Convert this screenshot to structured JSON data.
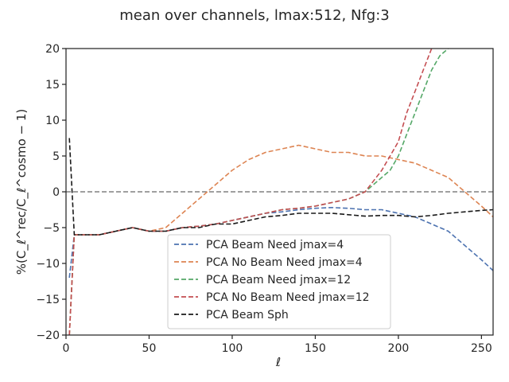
{
  "chart_data": {
    "type": "line",
    "title": "mean over channels, lmax:512, Nfg:3",
    "xlabel": "ℓ",
    "ylabel": "%(C_ℓ^rec/C_ℓ^cosmo − 1)",
    "xlim": [
      0,
      257
    ],
    "ylim": [
      -20,
      20
    ],
    "xticks": [
      0,
      50,
      100,
      150,
      200,
      250
    ],
    "yticks": [
      -20,
      -15,
      -10,
      -5,
      0,
      5,
      10,
      15,
      20
    ],
    "reference_line": {
      "y": 0,
      "style": "dashed",
      "color": "#808080"
    },
    "grid": false,
    "legend": {
      "placement": "lower-center"
    },
    "series": [
      {
        "name": "PCA Beam Need jmax=4",
        "color": "#4c72b0",
        "style": "dashed",
        "x": [
          2,
          5,
          10,
          20,
          30,
          40,
          50,
          60,
          70,
          80,
          90,
          100,
          110,
          120,
          130,
          140,
          150,
          160,
          170,
          180,
          190,
          200,
          210,
          220,
          230,
          240,
          250,
          257
        ],
        "y": [
          -12,
          -6,
          -6,
          -6,
          -5.5,
          -5,
          -5.5,
          -5.5,
          -5,
          -4.8,
          -4.5,
          -4,
          -3.5,
          -3,
          -2.8,
          -2.5,
          -2.3,
          -2.2,
          -2.3,
          -2.5,
          -2.5,
          -3,
          -3.5,
          -4.5,
          -5.5,
          -7.5,
          -9.5,
          -11
        ]
      },
      {
        "name": "PCA No Beam Need jmax=4",
        "color": "#dd8452",
        "style": "dashed",
        "x": [
          2,
          5,
          10,
          20,
          30,
          40,
          50,
          60,
          70,
          80,
          90,
          100,
          110,
          120,
          130,
          140,
          150,
          160,
          170,
          180,
          190,
          200,
          210,
          220,
          230,
          240,
          250,
          257
        ],
        "y": [
          -20,
          -6,
          -6,
          -6,
          -5.5,
          -5,
          -5.5,
          -5,
          -3,
          -1,
          1,
          3,
          4.5,
          5.5,
          6,
          6.5,
          6,
          5.5,
          5.5,
          5,
          5,
          4.5,
          4,
          3,
          2,
          0,
          -2,
          -3.5
        ]
      },
      {
        "name": "PCA Beam Need jmax=12",
        "color": "#55a868",
        "style": "dashed",
        "x": [
          2,
          5,
          10,
          20,
          30,
          40,
          50,
          60,
          70,
          80,
          90,
          100,
          110,
          120,
          130,
          140,
          150,
          160,
          170,
          180,
          190,
          195,
          200,
          205,
          210,
          215,
          220,
          225,
          230
        ],
        "y": [
          -20,
          -6,
          -6,
          -6,
          -5.5,
          -5,
          -5.5,
          -5.5,
          -5,
          -4.8,
          -4.5,
          -4,
          -3.5,
          -3,
          -2.5,
          -2.3,
          -2,
          -1.5,
          -1,
          0,
          2,
          3,
          5,
          8,
          11,
          14,
          17,
          19,
          20
        ]
      },
      {
        "name": "PCA No Beam Need jmax=12",
        "color": "#c44e52",
        "style": "dashed",
        "x": [
          2,
          5,
          10,
          20,
          30,
          40,
          50,
          60,
          70,
          80,
          90,
          100,
          110,
          120,
          130,
          140,
          150,
          160,
          170,
          180,
          190,
          195,
          200,
          205,
          210,
          215,
          220
        ],
        "y": [
          -20,
          -6,
          -6,
          -6,
          -5.5,
          -5,
          -5.5,
          -5.5,
          -5,
          -4.8,
          -4.5,
          -4,
          -3.5,
          -3,
          -2.5,
          -2.3,
          -2,
          -1.5,
          -1,
          0,
          3,
          5,
          7,
          11,
          14,
          17,
          20
        ]
      },
      {
        "name": "PCA Beam Sph",
        "color": "#1a1a1a",
        "style": "dashed",
        "x": [
          2,
          5,
          10,
          20,
          30,
          40,
          50,
          60,
          70,
          80,
          90,
          100,
          110,
          120,
          130,
          140,
          150,
          160,
          170,
          180,
          190,
          200,
          210,
          220,
          230,
          240,
          250,
          257
        ],
        "y": [
          7.5,
          -6,
          -6,
          -6,
          -5.5,
          -5,
          -5.5,
          -5.5,
          -5,
          -5,
          -4.5,
          -4.5,
          -4,
          -3.5,
          -3.3,
          -3,
          -3,
          -3,
          -3.2,
          -3.4,
          -3.3,
          -3.3,
          -3.5,
          -3.3,
          -3,
          -2.8,
          -2.6,
          -2.5
        ]
      }
    ]
  }
}
